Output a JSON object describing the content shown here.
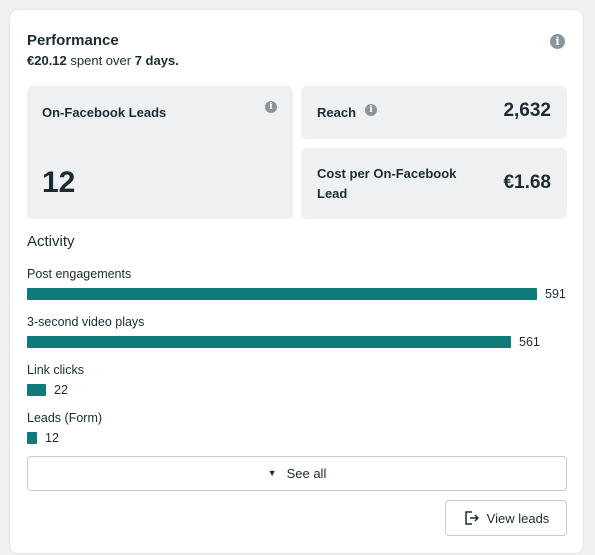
{
  "header": {
    "title": "Performance",
    "spent_amount": "€20.12",
    "spent_mid": "spent over",
    "spent_period": "7 days."
  },
  "metrics": {
    "leads": {
      "label": "On-Facebook Leads",
      "value": "12"
    },
    "reach": {
      "label": "Reach",
      "value": "2,632"
    },
    "cost": {
      "label": "Cost per On-Facebook Lead",
      "value": "€1.68"
    }
  },
  "activity": {
    "title": "Activity",
    "items": [
      {
        "label": "Post engagements",
        "value": "591",
        "count": 591
      },
      {
        "label": "3-second video plays",
        "value": "561",
        "count": 561
      },
      {
        "label": "Link clicks",
        "value": "22",
        "count": 22
      },
      {
        "label": "Leads (Form)",
        "value": "12",
        "count": 12
      }
    ]
  },
  "buttons": {
    "see_all": "See all",
    "view_leads": "View leads"
  },
  "colors": {
    "bar": "#0e7a7a",
    "metric_bg": "#eef0f2"
  },
  "icons": {
    "info": "info-icon",
    "chevron": "chevron-down-icon",
    "view_leads": "export-icon"
  }
}
